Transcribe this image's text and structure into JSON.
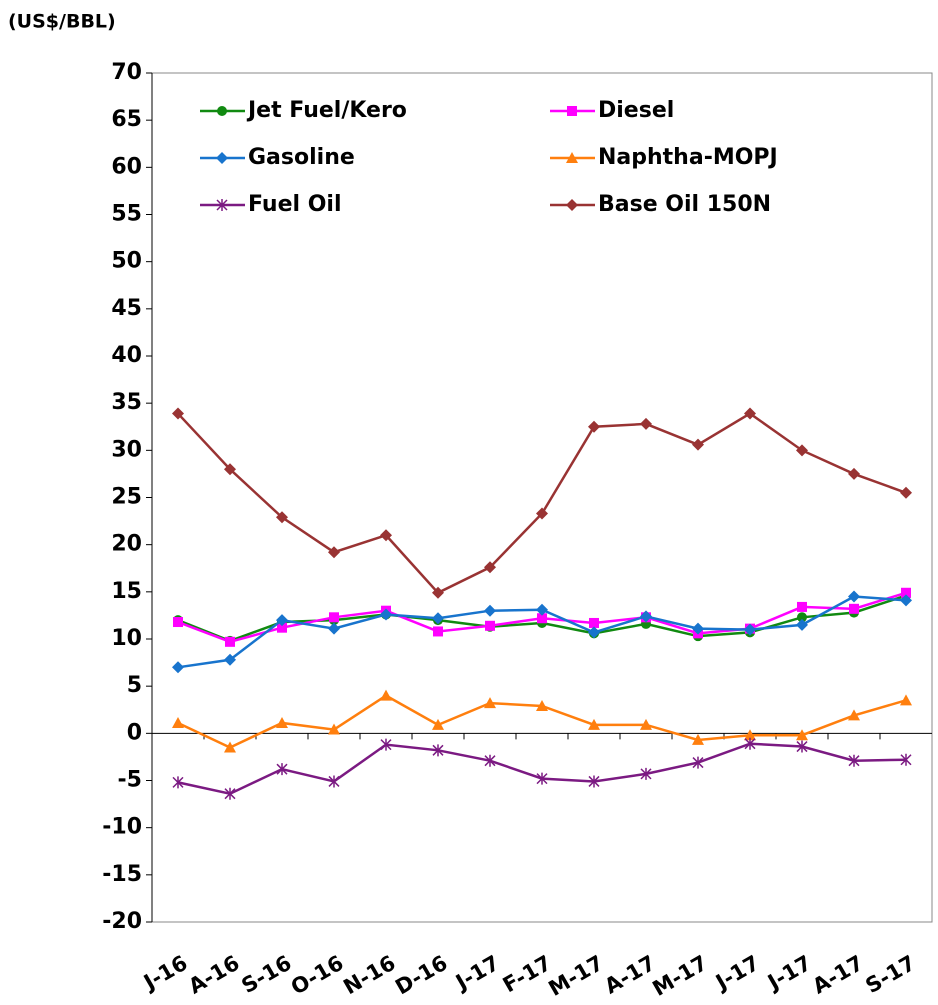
{
  "chart_data": {
    "type": "line",
    "y_label": "(US$/BBL)",
    "categories": [
      "J-16",
      "A-16",
      "S-16",
      "O-16",
      "N-16",
      "D-16",
      "J-17",
      "F-17",
      "M-17",
      "A-17",
      "M-17",
      "J-17",
      "J-17",
      "A-17",
      "S-17"
    ],
    "ylim": [
      -20,
      70
    ],
    "yticks": [
      -20,
      -15,
      -10,
      -5,
      0,
      5,
      10,
      15,
      20,
      25,
      30,
      35,
      40,
      45,
      50,
      55,
      60,
      65,
      70
    ],
    "series": [
      {
        "name": "Jet Fuel/Kero",
        "color": "#118a11",
        "marker": "circle",
        "values": [
          12,
          9.8,
          11.8,
          12,
          12.6,
          12,
          11.3,
          11.7,
          10.6,
          11.6,
          10.3,
          10.7,
          12.3,
          12.8,
          14.6
        ]
      },
      {
        "name": "Diesel",
        "color": "#ff00ff",
        "marker": "square",
        "values": [
          11.8,
          9.7,
          11.2,
          12.3,
          13,
          10.8,
          11.4,
          12.2,
          11.7,
          12.3,
          10.6,
          11.1,
          13.4,
          13.2,
          14.9
        ]
      },
      {
        "name": "Gasoline",
        "color": "#1874cd",
        "marker": "diamond",
        "values": [
          7,
          7.8,
          12,
          11.1,
          12.6,
          12.2,
          13,
          13.1,
          10.7,
          12.4,
          11.1,
          11,
          11.5,
          14.5,
          14.1
        ]
      },
      {
        "name": "Naphtha-MOPJ",
        "color": "#ff7f0e",
        "marker": "triangle",
        "values": [
          1.1,
          -1.5,
          1.1,
          0.4,
          4,
          0.9,
          3.2,
          2.9,
          0.9,
          0.9,
          -0.7,
          -0.2,
          -0.2,
          1.9,
          3.5
        ]
      },
      {
        "name": "Fuel Oil",
        "color": "#7b1a82",
        "marker": "star",
        "values": [
          -5.2,
          -6.4,
          -3.8,
          -5.1,
          -1.2,
          -1.8,
          -2.9,
          -4.8,
          -5.1,
          -4.3,
          -3.1,
          -1.1,
          -1.4,
          -2.9,
          -2.8
        ]
      },
      {
        "name": " Base Oil 150N",
        "color": "#993333",
        "marker": "diamond",
        "values": [
          33.9,
          28,
          22.9,
          19.2,
          21,
          14.9,
          17.6,
          23.3,
          32.5,
          32.8,
          30.6,
          33.9,
          30,
          27.5,
          25.5
        ]
      }
    ]
  }
}
